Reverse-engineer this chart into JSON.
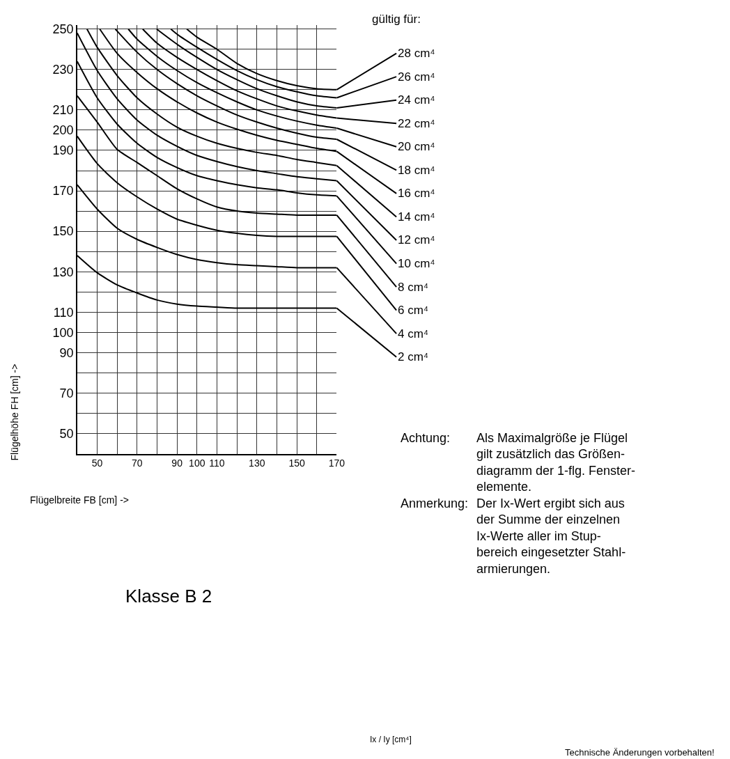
{
  "chart_data": {
    "type": "line",
    "title": "Klasse B 2",
    "xlabel": "Flügelbreite FB [cm] ->",
    "ylabel": "Flügelhöhe FH [cm] ->",
    "xlim": [
      40,
      170
    ],
    "ylim": [
      40,
      252
    ],
    "xticks": [
      50,
      {
        "value": 60,
        "label": null
      },
      70,
      {
        "value": 80,
        "label": null
      },
      90,
      100,
      110,
      {
        "value": 120,
        "label": null
      },
      130,
      {
        "value": 140,
        "label": null
      },
      150,
      {
        "value": 160,
        "label": null
      },
      170
    ],
    "yticks": [
      50,
      {
        "value": 60,
        "label": null
      },
      70,
      {
        "value": 80,
        "label": null
      },
      90,
      100,
      110,
      {
        "value": 120,
        "label": null
      },
      130,
      {
        "value": 140,
        "label": null
      },
      150,
      {
        "value": 160,
        "label": null
      },
      170,
      {
        "value": 180,
        "label": null
      },
      190,
      200,
      210,
      {
        "value": 220,
        "label": null
      },
      230,
      {
        "value": 240,
        "label": null
      },
      250
    ],
    "grid": true,
    "legend": "right",
    "marker": "none",
    "line_style": "solid",
    "series": [
      {
        "name": "28 cm⁴",
        "color": "#000000",
        "x": [
          94.9,
          100,
          110,
          120,
          130,
          140,
          150,
          160,
          170
        ],
        "values": [
          250,
          246,
          240,
          233,
          228,
          224.5,
          222,
          220.5,
          220
        ]
      },
      {
        "name": "26 cm⁴",
        "color": "#000000",
        "x": [
          86.9,
          90,
          100,
          110,
          120,
          130,
          140,
          150,
          160,
          170
        ],
        "values": [
          250,
          247.5,
          241,
          235,
          229.5,
          225,
          221.5,
          219,
          217,
          216
        ]
      },
      {
        "name": "24 cm⁴",
        "color": "#000000",
        "x": [
          79.8,
          90,
          100,
          110,
          120,
          130,
          140,
          150,
          160,
          170
        ],
        "values": [
          250,
          242.5,
          236,
          230,
          225,
          220.5,
          217,
          214,
          212,
          211
        ]
      },
      {
        "name": "22 cm⁴",
        "color": "#000000",
        "x": [
          72.8,
          80,
          90,
          100,
          110,
          120,
          130,
          140,
          150,
          160,
          170
        ],
        "values": [
          250,
          243,
          236,
          230,
          224.5,
          219.5,
          215.5,
          212,
          209.5,
          207.5,
          206
        ]
      },
      {
        "name": "20 cm⁴",
        "color": "#000000",
        "x": [
          65.6,
          70,
          80,
          90,
          100,
          110,
          120,
          130,
          140,
          150,
          160,
          170
        ],
        "values": [
          250,
          245,
          236.5,
          229.5,
          223.5,
          218.5,
          214,
          210,
          207,
          204.5,
          202.5,
          201
        ]
      },
      {
        "name": "18 cm⁴",
        "color": "#000000",
        "x": [
          59.1,
          60,
          70,
          80,
          90,
          100,
          110,
          120,
          130,
          140,
          150,
          160,
          170
        ],
        "values": [
          250,
          249,
          238.5,
          230,
          223,
          217,
          212,
          207.5,
          204,
          201,
          198.5,
          196.5,
          195.5
        ]
      },
      {
        "name": "16 cm⁴",
        "color": "#000000",
        "x": [
          51.3,
          60,
          70,
          80,
          90,
          100,
          110,
          120,
          130,
          140,
          150,
          160,
          170
        ],
        "values": [
          250,
          238,
          228.5,
          220.5,
          214,
          208.5,
          204,
          200.5,
          197.5,
          195,
          193,
          191,
          189.5
        ]
      },
      {
        "name": "14 cm⁴",
        "color": "#000000",
        "x": [
          44.9,
          50,
          60,
          70,
          80,
          90,
          100,
          110,
          120,
          130,
          140,
          150,
          160,
          170
        ],
        "values": [
          250,
          241,
          227,
          216,
          208,
          201.5,
          197,
          193.5,
          191,
          189,
          187.5,
          185.5,
          184,
          182.5
        ]
      },
      {
        "name": "12 cm⁴",
        "color": "#000000",
        "x": [
          40,
          50,
          60,
          70,
          80,
          90,
          100,
          110,
          120,
          130,
          140,
          150,
          160,
          170
        ],
        "values": [
          248,
          229.5,
          215.5,
          205,
          197.5,
          192,
          187.5,
          184.5,
          182,
          180,
          178.5,
          177,
          176,
          175
        ]
      },
      {
        "name": "10 cm⁴",
        "color": "#000000",
        "x": [
          40,
          50,
          60,
          70,
          80,
          90,
          100,
          110,
          120,
          130,
          140,
          150,
          160,
          170
        ],
        "values": [
          234,
          216,
          203,
          193.5,
          186.5,
          181.5,
          177.5,
          175,
          173,
          171.5,
          170.5,
          169,
          168,
          167.5
        ]
      },
      {
        "name": "8 cm⁴",
        "color": "#000000",
        "x": [
          40,
          50,
          60,
          70,
          80,
          90,
          100,
          110,
          120,
          130,
          140,
          150,
          160,
          170
        ],
        "values": [
          217,
          204,
          190.5,
          184,
          177.5,
          171,
          166,
          162,
          160,
          159,
          158.5,
          158,
          158,
          158
        ]
      },
      {
        "name": "6 cm⁴",
        "color": "#000000",
        "x": [
          40,
          50,
          60,
          70,
          80,
          90,
          100,
          110,
          120,
          130,
          140,
          150,
          160,
          170
        ],
        "values": [
          197,
          183.5,
          174,
          167,
          161,
          156,
          153,
          150.5,
          149,
          148,
          147.5,
          147.5,
          147.5,
          147.5
        ]
      },
      {
        "name": "4 cm⁴",
        "color": "#000000",
        "x": [
          40,
          50,
          60,
          70,
          80,
          90,
          100,
          110,
          120,
          130,
          140,
          150,
          160,
          170
        ],
        "values": [
          173,
          161,
          151.5,
          146,
          142,
          138.5,
          136,
          134.5,
          133.5,
          133,
          132.5,
          132,
          132,
          132
        ]
      },
      {
        "name": "2 cm⁴",
        "color": "#000000",
        "x": [
          40,
          50,
          60,
          70,
          80,
          90,
          100,
          110,
          120,
          130,
          140,
          150,
          160,
          170
        ],
        "values": [
          138,
          129.5,
          123.5,
          119.5,
          116,
          114,
          113,
          112.5,
          112,
          112,
          112,
          112,
          112,
          112
        ]
      }
    ],
    "annotations": [
      "gültig für:",
      "Achtung:",
      "Als Maximalgröße je Flügel\ngilt zusätzlich das Größen-\ndiagramm der 1-flg. Fenster-\nelemente.",
      "Anmerkung:",
      "Der Ix-Wert ergibt sich aus\nder Summe der einzelnen\nIx-Werte aller im Stup-\nbereich eingesetzter Stahl-\narmierungen.",
      "Ix / Iy [cm⁴]",
      "Technische Änderungen vorbehalten!"
    ]
  }
}
